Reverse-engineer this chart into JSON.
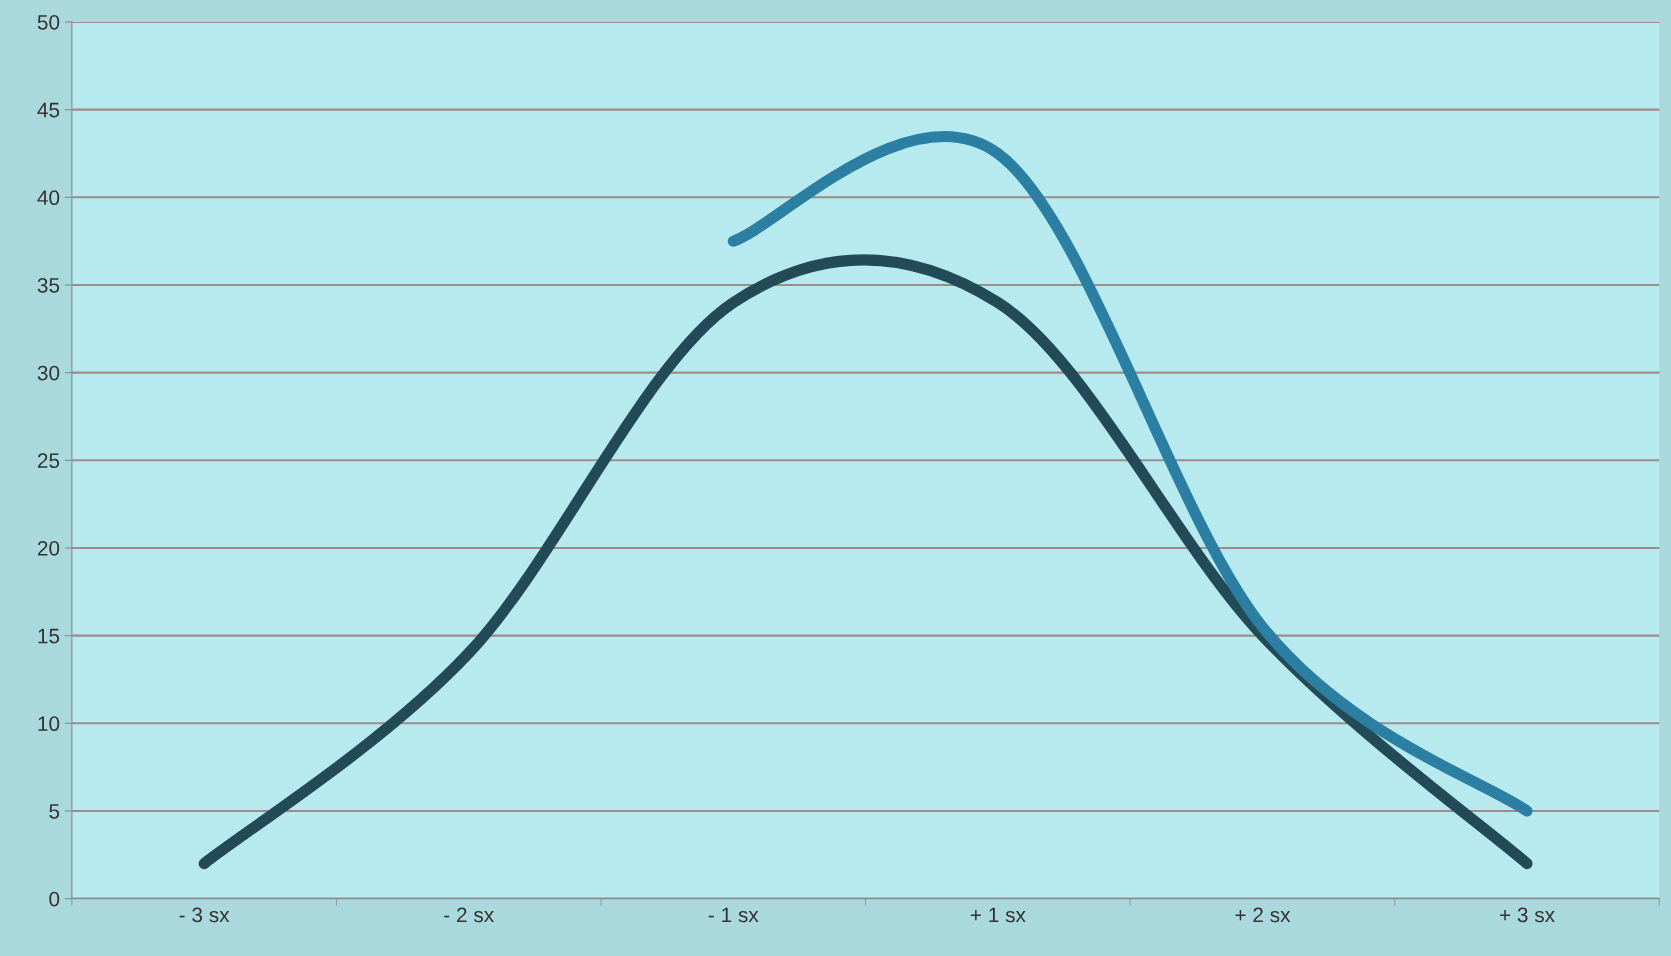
{
  "chart_data": {
    "type": "line",
    "categories": [
      "- 3 sx",
      "- 2 sx",
      "- 1 sx",
      "+ 1 sx",
      "+ 2 sx",
      "+ 3 sx"
    ],
    "series": [
      {
        "color": "#234b57",
        "values": [
          2,
          14,
          34,
          34,
          15,
          2
        ]
      },
      {
        "color": "#2b7fa3",
        "values": [
          null,
          null,
          37.5,
          42.5,
          15.5,
          5
        ]
      }
    ],
    "ylim": [
      0,
      50
    ],
    "yticks": [
      0,
      5,
      10,
      15,
      20,
      25,
      30,
      35,
      40,
      45,
      50
    ],
    "grid": "y",
    "marker": "none",
    "line_style": "solid"
  }
}
